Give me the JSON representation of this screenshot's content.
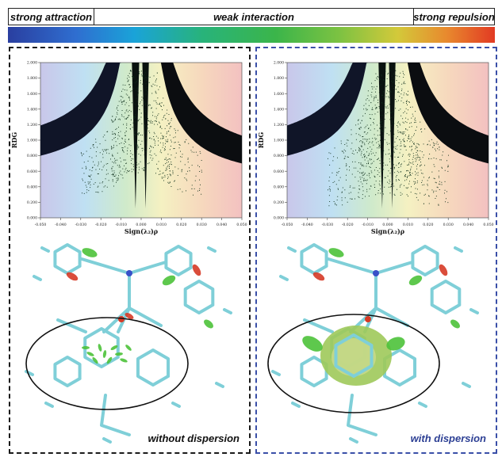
{
  "key": {
    "left_label": "strong attraction",
    "middle_label": "weak interaction",
    "right_label": "strong repulsion"
  },
  "panels": [
    {
      "caption": "without dispersion",
      "border_color": "#1a1a1a",
      "caption_color": "#111111"
    },
    {
      "caption": "with dispersion",
      "border_color": "#3a4fa8",
      "caption_color": "#2c3f94"
    }
  ],
  "plot": {
    "xlabel": "Sign(λ₂)ρ",
    "ylabel": "RDG",
    "x_ticks": [
      "-0.050",
      "-0.040",
      "-0.030",
      "-0.020",
      "-0.010",
      "0.000",
      "0.010",
      "0.020",
      "0.030",
      "0.040",
      "0.050"
    ],
    "y_ticks": [
      "0.000",
      "0.200",
      "0.400",
      "0.600",
      "0.800",
      "1.000",
      "1.200",
      "1.400",
      "1.600",
      "1.800",
      "2.000"
    ]
  },
  "colors": {
    "gradient_start": "#2a3fa0",
    "gradient_mid": "#3bb54a",
    "gradient_end": "#e23a23",
    "molecule_bond": "#7fcfd8",
    "surface_green": "#4cc23a",
    "surface_red": "#d63a26"
  }
}
